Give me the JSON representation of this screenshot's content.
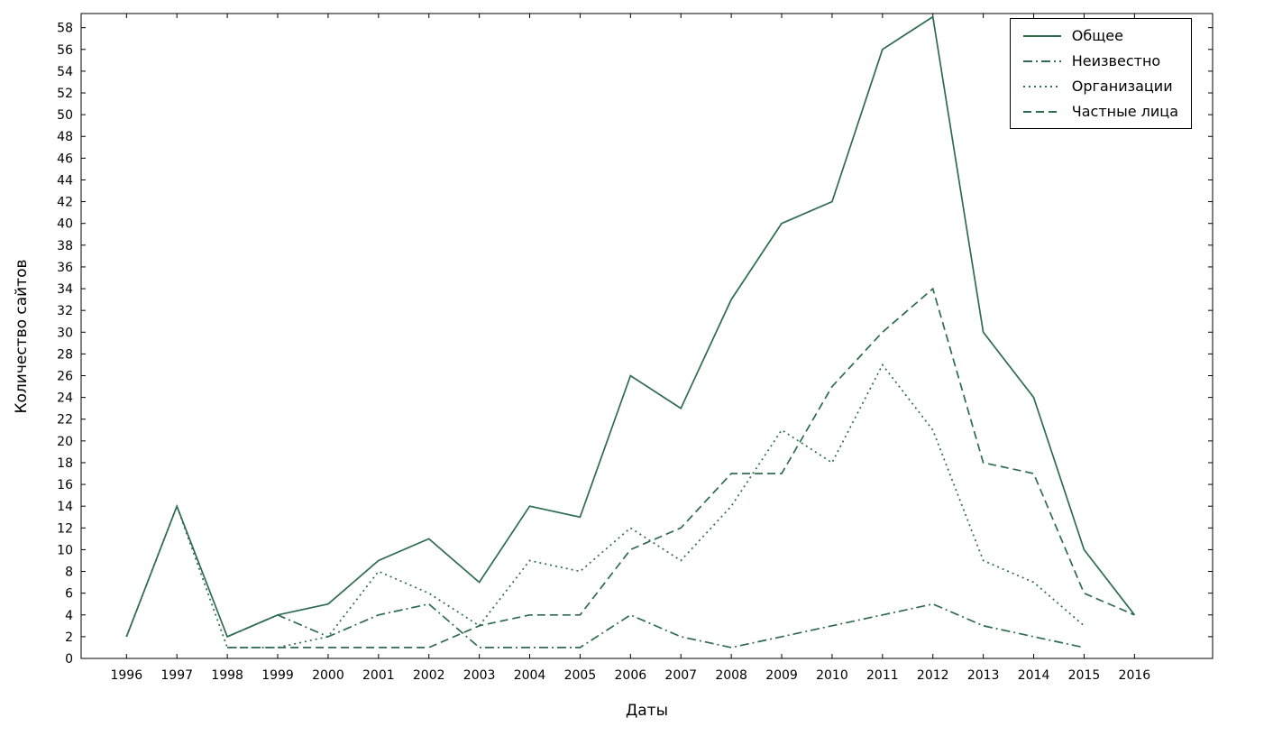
{
  "chart_data": {
    "type": "line",
    "title": "",
    "xlabel": "Даты",
    "ylabel": "Количество сайтов",
    "x": [
      1996,
      1997,
      1998,
      1999,
      2000,
      2001,
      2002,
      2003,
      2004,
      2005,
      2006,
      2007,
      2008,
      2009,
      2010,
      2011,
      2012,
      2013,
      2014,
      2015,
      2016
    ],
    "xlim": [
      1995.1,
      2017.55
    ],
    "ylim": [
      0,
      59.3
    ],
    "ytick_min": 0,
    "ytick_max": 58,
    "ytick_step": 2,
    "grid": false,
    "legend_position": "upper right",
    "line_color": "#2e6b51",
    "series": [
      {
        "name": "Общее",
        "style": "solid",
        "values": [
          2,
          14,
          2,
          4,
          5,
          9,
          11,
          7,
          14,
          13,
          26,
          23,
          33,
          40,
          42,
          56,
          59,
          30,
          24,
          10,
          4
        ]
      },
      {
        "name": "Неизвестно",
        "style": "dashdot",
        "values": [
          null,
          null,
          2,
          4,
          2,
          4,
          5,
          1,
          1,
          1,
          4,
          2,
          1,
          2,
          3,
          4,
          5,
          3,
          2,
          1,
          null
        ]
      },
      {
        "name": "Организации",
        "style": "dotted",
        "values": [
          2,
          14,
          1,
          1,
          2,
          8,
          6,
          3,
          9,
          8,
          12,
          9,
          14,
          21,
          18,
          27,
          21,
          9,
          7,
          3,
          null
        ]
      },
      {
        "name": "Частные лица",
        "style": "dashed",
        "values": [
          null,
          null,
          1,
          1,
          1,
          1,
          1,
          3,
          4,
          4,
          10,
          12,
          17,
          17,
          25,
          30,
          34,
          18,
          17,
          6,
          4
        ]
      }
    ]
  }
}
